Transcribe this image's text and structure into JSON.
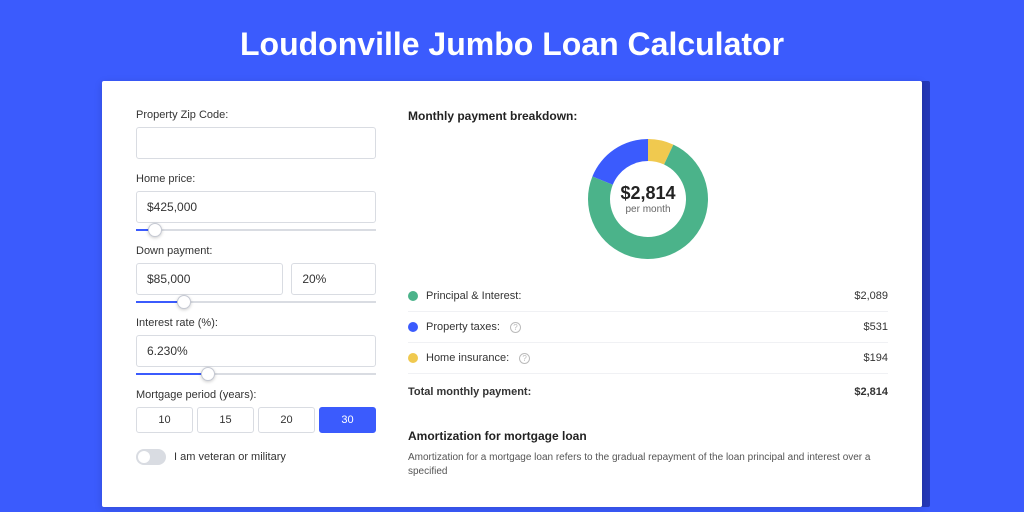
{
  "title": "Loudonville Jumbo Loan Calculator",
  "form": {
    "zip_label": "Property Zip Code:",
    "zip_value": "",
    "price_label": "Home price:",
    "price_value": "$425,000",
    "price_slider_pct": 8,
    "down_label": "Down payment:",
    "down_value": "$85,000",
    "down_pct_value": "20%",
    "down_slider_pct": 20,
    "rate_label": "Interest rate (%):",
    "rate_value": "6.230%",
    "rate_slider_pct": 30,
    "period_label": "Mortgage period (years):",
    "period_options": [
      "10",
      "15",
      "20",
      "30"
    ],
    "period_selected": "30",
    "veteran_label": "I am veteran or military"
  },
  "breakdown": {
    "title": "Monthly payment breakdown:",
    "center_amount": "$2,814",
    "center_sub": "per month",
    "items": [
      {
        "label": "Principal & Interest:",
        "value": "$2,089",
        "color": "#4bb38a",
        "info": false
      },
      {
        "label": "Property taxes:",
        "value": "$531",
        "color": "#3b5bfd",
        "info": true
      },
      {
        "label": "Home insurance:",
        "value": "$194",
        "color": "#f0c94f",
        "info": true
      }
    ],
    "total_label": "Total monthly payment:",
    "total_value": "$2,814",
    "donut_colors": {
      "principal": "#4bb38a",
      "taxes": "#3b5bfd",
      "insurance": "#f0c94f"
    },
    "donut_angles": {
      "insurance_end": 30,
      "taxes_end": 98
    }
  },
  "amortization": {
    "title": "Amortization for mortgage loan",
    "text": "Amortization for a mortgage loan refers to the gradual repayment of the loan principal and interest over a specified"
  }
}
